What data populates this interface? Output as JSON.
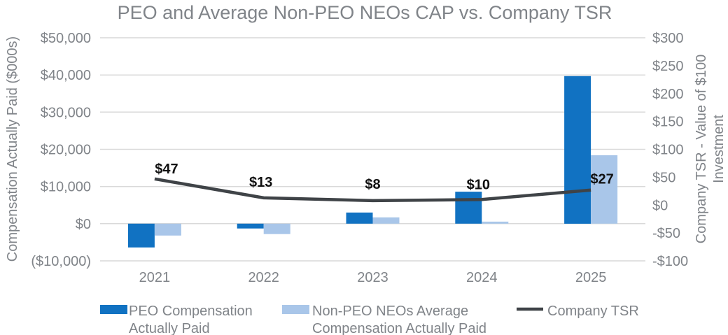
{
  "chart_data": {
    "type": "combo-bar-line",
    "title": "PEO and Average Non-PEO NEOs CAP vs. Company TSR",
    "categories": [
      "2021",
      "2022",
      "2023",
      "2024",
      "2025"
    ],
    "series": [
      {
        "name": "PEO Compensation Actually Paid",
        "type": "bar",
        "axis": "left",
        "color": "#1172C2",
        "values": [
          -6400,
          -1300,
          3000,
          8600,
          39700
        ],
        "legend_lines": [
          "PEO Compensation",
          "Actually Paid"
        ]
      },
      {
        "name": "Non-PEO NEOs Average Compensation Actually Paid",
        "type": "bar",
        "axis": "left",
        "color": "#A9C6E9",
        "values": [
          -3200,
          -2800,
          1700,
          550,
          18400
        ],
        "legend_lines": [
          "Non-PEO NEOs Average",
          "Compensation Actually Paid"
        ]
      },
      {
        "name": "Company TSR",
        "type": "line",
        "axis": "right",
        "color": "#3F4347",
        "values": [
          47,
          13,
          8,
          10,
          27
        ],
        "data_labels": [
          "$47",
          "$13",
          "$8",
          "$10",
          "$27"
        ],
        "legend_lines": [
          "Company TSR"
        ]
      }
    ],
    "left_axis": {
      "title": "Compensation Actually Paid ($000s)",
      "min": -10000,
      "max": 50000,
      "step": 10000,
      "tick_labels": [
        "$50,000",
        "$40,000",
        "$30,000",
        "$20,000",
        "$10,000",
        "$0",
        "($10,000)"
      ]
    },
    "right_axis": {
      "title": "Company TSR - Value of $100 Investment",
      "title_lines": [
        "Company TSR - Value of $100",
        "Investment"
      ],
      "min": -100,
      "max": 300,
      "step": 50,
      "tick_labels": [
        "$300",
        "$250",
        "$200",
        "$150",
        "$100",
        "$50",
        "$0",
        "-$50",
        "-$100"
      ]
    },
    "grid": "horizontal-only",
    "legend_position": "bottom",
    "colors": {
      "gridline": "#D9D9D9",
      "text_gray": "#808489",
      "data_label": "#111111",
      "background": "#FFFFFF"
    }
  }
}
